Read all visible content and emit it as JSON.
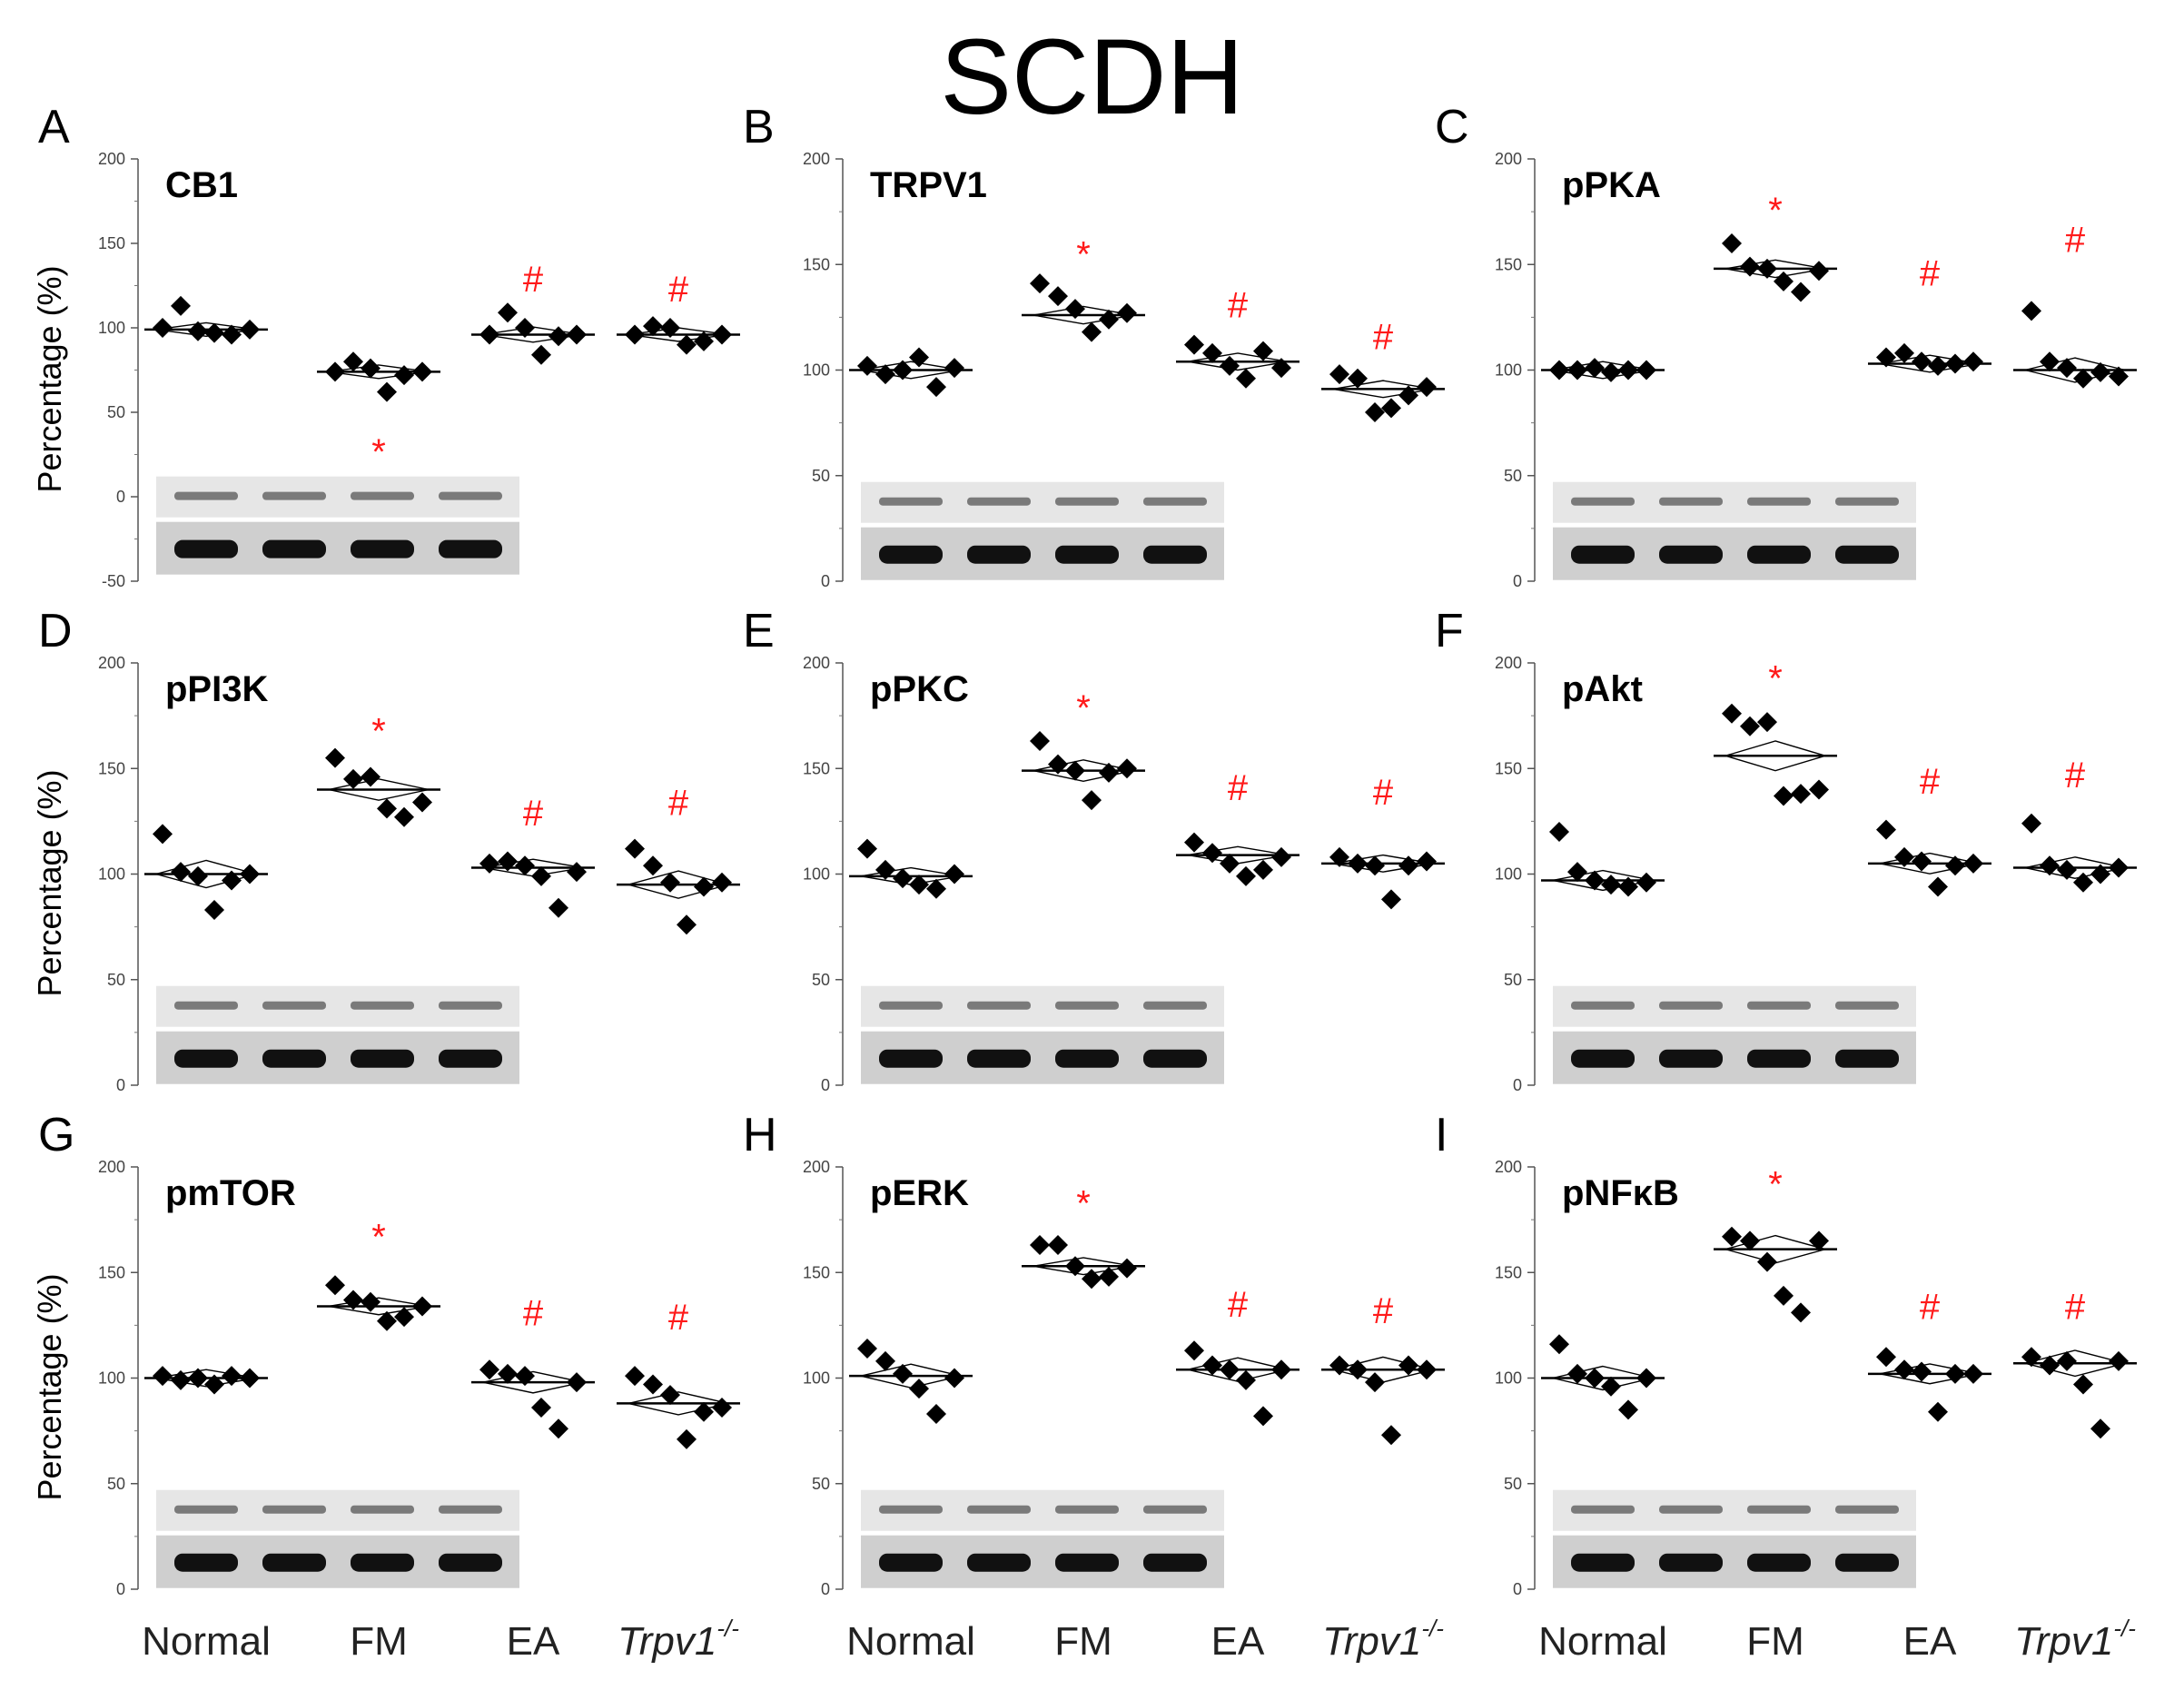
{
  "figure": {
    "title": "SCDH",
    "ylabel": "Percentage (%)",
    "group_labels": [
      "Normal",
      "FM",
      "EA",
      "Trpv1"
    ],
    "trpv1_superscript": "-/-",
    "sig_colors": {
      "star": "#ff1a1a",
      "hash": "#ff1a1a"
    }
  },
  "chart_data": [
    {
      "panel": "A",
      "title": "CB1",
      "type": "scatter",
      "ylim": [
        -50,
        200
      ],
      "yticks": [
        -50,
        0,
        50,
        100,
        150,
        200
      ],
      "categories": [
        "Normal",
        "FM",
        "EA",
        "Trpv1-/-"
      ],
      "means": [
        99,
        74,
        96,
        96
      ],
      "points": [
        [
          100,
          113,
          98,
          97,
          96,
          99
        ],
        [
          74,
          80,
          76,
          62,
          72,
          74
        ],
        [
          96,
          109,
          100,
          84,
          95,
          96
        ],
        [
          96,
          101,
          100,
          90,
          92,
          96
        ]
      ],
      "significance": [
        "",
        "*",
        "#",
        "#"
      ],
      "sig_values": [
        null,
        27,
        129,
        123
      ]
    },
    {
      "panel": "B",
      "title": "TRPV1",
      "type": "scatter",
      "ylim": [
        0,
        200
      ],
      "yticks": [
        0,
        50,
        100,
        150,
        200
      ],
      "categories": [
        "Normal",
        "FM",
        "EA",
        "Trpv1-/-"
      ],
      "means": [
        100,
        126,
        104,
        91
      ],
      "points": [
        [
          102,
          98,
          100,
          106,
          92,
          101
        ],
        [
          141,
          135,
          129,
          118,
          124,
          127
        ],
        [
          112,
          108,
          102,
          96,
          109,
          101
        ],
        [
          98,
          96,
          80,
          82,
          88,
          92
        ]
      ],
      "significance": [
        "",
        "*",
        "#",
        "#"
      ],
      "sig_values": [
        null,
        155,
        131,
        116
      ]
    },
    {
      "panel": "C",
      "title": "pPKA",
      "type": "scatter",
      "ylim": [
        0,
        200
      ],
      "yticks": [
        0,
        50,
        100,
        150,
        200
      ],
      "categories": [
        "Normal",
        "FM",
        "EA",
        "Trpv1-/-"
      ],
      "means": [
        100,
        148,
        103,
        100
      ],
      "points": [
        [
          100,
          100,
          101,
          99,
          100,
          100
        ],
        [
          160,
          149,
          148,
          142,
          137,
          147
        ],
        [
          106,
          108,
          104,
          102,
          103,
          104
        ],
        [
          128,
          104,
          101,
          96,
          99,
          97
        ]
      ],
      "significance": [
        "",
        "*",
        "#",
        "#"
      ],
      "sig_values": [
        null,
        176,
        146,
        162
      ]
    },
    {
      "panel": "D",
      "title": "pPI3K",
      "type": "scatter",
      "ylim": [
        0,
        200
      ],
      "yticks": [
        0,
        50,
        100,
        150,
        200
      ],
      "categories": [
        "Normal",
        "FM",
        "EA",
        "Trpv1-/-"
      ],
      "means": [
        100,
        140,
        103,
        95
      ],
      "points": [
        [
          119,
          101,
          99,
          83,
          97,
          100
        ],
        [
          155,
          145,
          146,
          131,
          127,
          134
        ],
        [
          105,
          106,
          104,
          99,
          84,
          101
        ],
        [
          112,
          104,
          96,
          76,
          94,
          96
        ]
      ],
      "significance": [
        "",
        "*",
        "#",
        "#"
      ],
      "sig_values": [
        null,
        168,
        129,
        134
      ]
    },
    {
      "panel": "E",
      "title": "pPKC",
      "type": "scatter",
      "ylim": [
        0,
        200
      ],
      "yticks": [
        0,
        50,
        100,
        150,
        200
      ],
      "categories": [
        "Normal",
        "FM",
        "EA",
        "Trpv1-/-"
      ],
      "means": [
        99,
        149,
        109,
        105
      ],
      "points": [
        [
          112,
          102,
          98,
          95,
          93,
          100
        ],
        [
          163,
          152,
          149,
          135,
          148,
          150
        ],
        [
          115,
          110,
          105,
          99,
          102,
          108
        ],
        [
          108,
          105,
          104,
          88,
          104,
          106
        ]
      ],
      "significance": [
        "",
        "*",
        "#",
        "#"
      ],
      "sig_values": [
        null,
        179,
        141,
        139
      ]
    },
    {
      "panel": "F",
      "title": "pAkt",
      "type": "scatter",
      "ylim": [
        0,
        200
      ],
      "yticks": [
        0,
        50,
        100,
        150,
        200
      ],
      "categories": [
        "Normal",
        "FM",
        "EA",
        "Trpv1-/-"
      ],
      "means": [
        97,
        156,
        105,
        103
      ],
      "points": [
        [
          120,
          101,
          97,
          95,
          94,
          96
        ],
        [
          176,
          170,
          172,
          137,
          138,
          140
        ],
        [
          121,
          108,
          106,
          94,
          104,
          105
        ],
        [
          124,
          104,
          102,
          96,
          100,
          103
        ]
      ],
      "significance": [
        "",
        "*",
        "#",
        "#"
      ],
      "sig_values": [
        null,
        193,
        144,
        147
      ]
    },
    {
      "panel": "G",
      "title": "pmTOR",
      "type": "scatter",
      "ylim": [
        0,
        200
      ],
      "yticks": [
        0,
        50,
        100,
        150,
        200
      ],
      "categories": [
        "Normal",
        "FM",
        "EA",
        "Trpv1-/-"
      ],
      "means": [
        100,
        134,
        98,
        88
      ],
      "points": [
        [
          101,
          99,
          100,
          97,
          101,
          100
        ],
        [
          144,
          137,
          136,
          127,
          129,
          134
        ],
        [
          104,
          102,
          101,
          86,
          76,
          98
        ],
        [
          101,
          97,
          92,
          71,
          84,
          86
        ]
      ],
      "significance": [
        "",
        "*",
        "#",
        "#"
      ],
      "sig_values": [
        null,
        167,
        131,
        129
      ]
    },
    {
      "panel": "H",
      "title": "pERK",
      "type": "scatter",
      "ylim": [
        0,
        200
      ],
      "yticks": [
        0,
        50,
        100,
        150,
        200
      ],
      "categories": [
        "Normal",
        "FM",
        "EA",
        "Trpv1-/-"
      ],
      "means": [
        101,
        153,
        104,
        104
      ],
      "points": [
        [
          114,
          108,
          102,
          95,
          83,
          100
        ],
        [
          163,
          163,
          153,
          147,
          148,
          152
        ],
        [
          113,
          106,
          104,
          99,
          82,
          104
        ],
        [
          106,
          104,
          98,
          73,
          106,
          104
        ]
      ],
      "significance": [
        "",
        "*",
        "#",
        "#"
      ],
      "sig_values": [
        null,
        183,
        135,
        132
      ]
    },
    {
      "panel": "I",
      "title": "pNFκB",
      "type": "scatter",
      "ylim": [
        0,
        200
      ],
      "yticks": [
        0,
        50,
        100,
        150,
        200
      ],
      "categories": [
        "Normal",
        "FM",
        "EA",
        "Trpv1-/-"
      ],
      "means": [
        100,
        161,
        102,
        107
      ],
      "points": [
        [
          116,
          102,
          100,
          96,
          85,
          100
        ],
        [
          167,
          165,
          155,
          139,
          131,
          165
        ],
        [
          110,
          104,
          103,
          84,
          102,
          102
        ],
        [
          110,
          106,
          108,
          97,
          76,
          108
        ]
      ],
      "significance": [
        "",
        "*",
        "#",
        "#"
      ],
      "sig_values": [
        null,
        192,
        134,
        134
      ]
    }
  ]
}
